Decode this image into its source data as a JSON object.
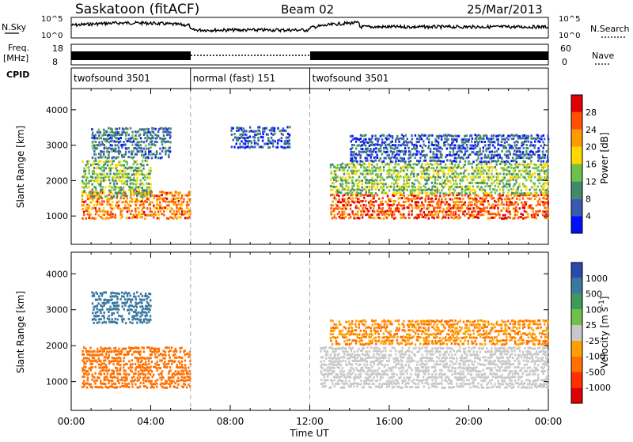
{
  "header": {
    "station": "Saskatoon (fitACF)",
    "beam": "Beam 02",
    "date": "25/Mar/2013"
  },
  "top_panels": {
    "nsky_label": "N.Sky",
    "nsky_ticks": [
      "10^5",
      "10^0"
    ],
    "nsearch_label": "N.Search",
    "nsearch_ticks": [
      "10^5",
      "10^0"
    ],
    "freq_label": "Freq.",
    "freq_unit": "[MHz]",
    "freq_ticks": [
      "18",
      "8"
    ],
    "nave_label": "Nave",
    "nave_ticks": [
      "60",
      "0"
    ],
    "cpid_label": "CPID",
    "cpid_segments": [
      {
        "label": "twofsound 3501",
        "start_hour": 0,
        "end_hour": 6
      },
      {
        "label": "normal (fast) 151",
        "start_hour": 6,
        "end_hour": 12
      },
      {
        "label": "twofsound 3501",
        "start_hour": 12,
        "end_hour": 24
      }
    ]
  },
  "chart_data": [
    {
      "type": "heatmap",
      "quantity": "Power",
      "xlabel": "Time UT",
      "ylabel": "Slant Range [km]",
      "xlim": [
        0,
        24
      ],
      "ylim": [
        200,
        4600
      ],
      "x_ticks": [
        "00:00",
        "04:00",
        "08:00",
        "12:00",
        "16:00",
        "20:00",
        "00:00"
      ],
      "y_ticks": [
        "1000",
        "2000",
        "3000",
        "4000"
      ],
      "y_tick_values": [
        1000,
        2000,
        3000,
        4000
      ],
      "colorbar": {
        "label": "Power [dB]",
        "range": [
          0,
          32
        ],
        "ticks": [
          "4",
          "8",
          "12",
          "16",
          "20",
          "24",
          "28"
        ],
        "colors": [
          "#0010ff",
          "#3a58b0",
          "#3f8a6a",
          "#6fc048",
          "#ffd800",
          "#ff9a00",
          "#ff5000",
          "#e00000"
        ]
      },
      "regions": [
        {
          "x": [
            0.5,
            6
          ],
          "y": [
            900,
            1700
          ],
          "value": 24
        },
        {
          "x": [
            0.5,
            4
          ],
          "y": [
            1500,
            2600
          ],
          "value": 14
        },
        {
          "x": [
            1,
            5
          ],
          "y": [
            2600,
            3500
          ],
          "value": 8
        },
        {
          "x": [
            8,
            11
          ],
          "y": [
            2900,
            3500
          ],
          "value": 6
        },
        {
          "x": [
            13,
            24
          ],
          "y": [
            900,
            1600
          ],
          "value": 26
        },
        {
          "x": [
            13,
            24
          ],
          "y": [
            1600,
            2500
          ],
          "value": 14
        },
        {
          "x": [
            14,
            24
          ],
          "y": [
            2500,
            3300
          ],
          "value": 6
        }
      ]
    },
    {
      "type": "heatmap",
      "quantity": "Velocity",
      "xlabel": "Time UT",
      "ylabel": "Slant Range [km]",
      "xlim": [
        0,
        24
      ],
      "ylim": [
        200,
        4600
      ],
      "x_ticks": [
        "00:00",
        "04:00",
        "08:00",
        "12:00",
        "16:00",
        "20:00",
        "00:00"
      ],
      "y_ticks": [
        "1000",
        "2000",
        "3000",
        "4000"
      ],
      "y_tick_values": [
        1000,
        2000,
        3000,
        4000
      ],
      "colorbar": {
        "label": "Velocity [m s^-1]",
        "ticks": [
          "1000",
          "500",
          "100",
          "25",
          "-25",
          "-100",
          "-500",
          "-1000"
        ],
        "colors": [
          "#2a4aa8",
          "#3a78a0",
          "#3f9a58",
          "#6fc048",
          "#c8c8c8",
          "#ffa000",
          "#ff7000",
          "#ff3000",
          "#e00000"
        ]
      },
      "regions": [
        {
          "x": [
            0.5,
            6
          ],
          "y": [
            800,
            2000
          ],
          "value": -300
        },
        {
          "x": [
            1,
            4
          ],
          "y": [
            2600,
            3500
          ],
          "value": 200
        },
        {
          "x": [
            12.5,
            24
          ],
          "y": [
            800,
            2000
          ],
          "value": 0
        },
        {
          "x": [
            13,
            24
          ],
          "y": [
            2000,
            2700
          ],
          "value": -100
        }
      ]
    }
  ]
}
